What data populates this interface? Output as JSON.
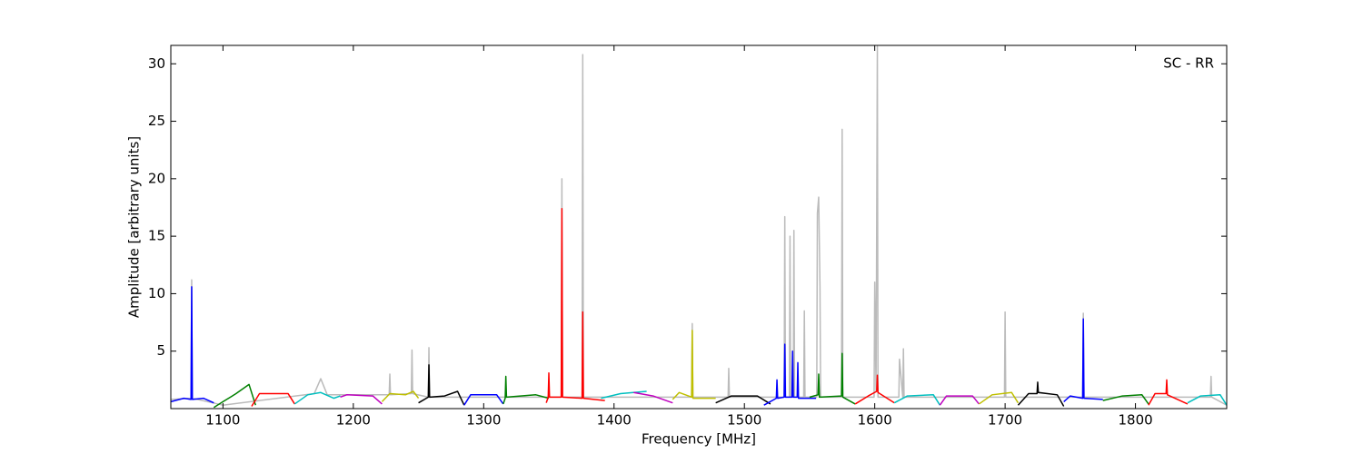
{
  "chart_data": {
    "type": "line",
    "xlabel": "Frequency [MHz]",
    "ylabel": "Amplitude [arbitrary units]",
    "annotation": "SC - RR",
    "xlim": [
      1060,
      1870
    ],
    "ylim": [
      0,
      31.6
    ],
    "xticks": [
      1100,
      1200,
      1300,
      1400,
      1500,
      1600,
      1700,
      1800
    ],
    "yticks": [
      5,
      10,
      15,
      20,
      25,
      30
    ],
    "grid": false,
    "series": [
      {
        "color": "#bbbbbb",
        "x": [
          1060,
          1075.5,
          1076,
          1076.5,
          1100,
          1170,
          1175,
          1180,
          1227.5,
          1228,
          1228.5,
          1244.5,
          1245,
          1245.5,
          1257.5,
          1258,
          1258.5,
          1359.5,
          1360,
          1360.5,
          1375.5,
          1376,
          1376.5,
          1459.5,
          1460,
          1460.5,
          1487.5,
          1488,
          1488.5,
          1530.5,
          1531,
          1531.5,
          1534.5,
          1535,
          1535.5,
          1537.5,
          1538,
          1538.5,
          1545.5,
          1546,
          1546.5,
          1555.5,
          1556,
          1557,
          1558,
          1558.5,
          1574.5,
          1575,
          1575.5,
          1599.5,
          1600,
          1601,
          1602,
          1602.5,
          1618.5,
          1619,
          1621.5,
          1622,
          1622.5,
          1699.5,
          1700,
          1700.5,
          1759.5,
          1760,
          1760.5,
          1857.5,
          1858,
          1858.5,
          1870
        ],
        "values": [
          0.8,
          0.9,
          11.2,
          0.9,
          0.3,
          1.3,
          2.6,
          1.2,
          1.2,
          3,
          1.2,
          1.3,
          5.1,
          1.3,
          1,
          5.3,
          1,
          1,
          20,
          1,
          1,
          30.8,
          1,
          1,
          7.4,
          1,
          1,
          3.5,
          1,
          1,
          16.7,
          1,
          1,
          15,
          1,
          1,
          15.5,
          1,
          1,
          8.5,
          1,
          1,
          17,
          18.4,
          10.6,
          1,
          1,
          24.3,
          1,
          1,
          11,
          1.5,
          31.5,
          1,
          1,
          4.3,
          1,
          5.2,
          1,
          1,
          8.4,
          1,
          1,
          8.3,
          1,
          1,
          2.8,
          1,
          0.3
        ]
      },
      {
        "color": "#0000ff",
        "x": [
          1060,
          1070,
          1075.5,
          1076,
          1076.5,
          1085,
          1093
        ],
        "values": [
          0.6,
          0.9,
          0.8,
          10.6,
          0.8,
          0.9,
          0.5
        ]
      },
      {
        "color": "#008000",
        "x": [
          1093,
          1100,
          1110,
          1120,
          1125
        ],
        "values": [
          0.1,
          0.6,
          1.3,
          2.1,
          0.3
        ]
      },
      {
        "color": "#ff0000",
        "x": [
          1122,
          1128,
          1150,
          1155
        ],
        "values": [
          0.2,
          1.3,
          1.3,
          0.4
        ]
      },
      {
        "color": "#00bfbf",
        "x": [
          1155,
          1165,
          1175,
          1185,
          1190
        ],
        "values": [
          0.4,
          1.2,
          1.4,
          0.9,
          1.1
        ]
      },
      {
        "color": "#bf00bf",
        "x": [
          1190,
          1195,
          1215,
          1222
        ],
        "values": [
          1.0,
          1.2,
          1.1,
          0.4
        ]
      },
      {
        "color": "#bfbf00",
        "x": [
          1222,
          1228,
          1240,
          1246,
          1250
        ],
        "values": [
          0.6,
          1.3,
          1.2,
          1.5,
          0.9
        ]
      },
      {
        "color": "#000000",
        "x": [
          1250,
          1257.5,
          1258,
          1258.5,
          1270,
          1280,
          1285
        ],
        "values": [
          0.5,
          1.0,
          3.8,
          1.0,
          1.1,
          1.5,
          0.3
        ]
      },
      {
        "color": "#0000ff",
        "x": [
          1285,
          1290,
          1310,
          1315
        ],
        "values": [
          0.3,
          1.2,
          1.2,
          0.4
        ]
      },
      {
        "color": "#008000",
        "x": [
          1315,
          1316.5,
          1317,
          1317.5,
          1340,
          1350
        ],
        "values": [
          0.4,
          0.9,
          2.8,
          1.0,
          1.2,
          0.9
        ]
      },
      {
        "color": "#ff0000",
        "x": [
          1348,
          1349.5,
          1350,
          1350.5,
          1359.5,
          1360,
          1360.5,
          1375.5,
          1376,
          1376.5,
          1393
        ],
        "values": [
          0.5,
          1.0,
          3.1,
          1.0,
          1.0,
          17.4,
          1.0,
          0.9,
          8.4,
          0.9,
          0.7
        ]
      },
      {
        "color": "#00bfbf",
        "x": [
          1390,
          1405,
          1425
        ],
        "values": [
          0.9,
          1.3,
          1.5
        ]
      },
      {
        "color": "#bf00bf",
        "x": [
          1415,
          1430,
          1445
        ],
        "values": [
          1.4,
          1.1,
          0.5
        ]
      },
      {
        "color": "#bfbf00",
        "x": [
          1445,
          1450,
          1459.5,
          1460,
          1460.5,
          1478
        ],
        "values": [
          0.8,
          1.4,
          1.0,
          6.8,
          0.9,
          0.9
        ]
      },
      {
        "color": "#000000",
        "x": [
          1478,
          1490,
          1510,
          1520
        ],
        "values": [
          0.5,
          1.1,
          1.1,
          0.4
        ]
      },
      {
        "color": "#0000ff",
        "x": [
          1515,
          1524.5,
          1525,
          1525.5,
          1530.5,
          1531,
          1531.5,
          1536.5,
          1537,
          1537.5,
          1540.5,
          1541,
          1541.5,
          1555
        ],
        "values": [
          0.3,
          0.9,
          2.5,
          0.9,
          1.0,
          5.6,
          1.0,
          1.0,
          5.0,
          1.0,
          1.0,
          4.0,
          0.9,
          0.9
        ]
      },
      {
        "color": "#008000",
        "x": [
          1550,
          1556.5,
          1557,
          1557.5,
          1574.5,
          1575,
          1575.5,
          1585
        ],
        "values": [
          1.0,
          1.2,
          3.0,
          1.0,
          1.1,
          4.8,
          1.0,
          0.4
        ]
      },
      {
        "color": "#ff0000",
        "x": [
          1585,
          1595,
          1601.5,
          1602,
          1602.5,
          1615
        ],
        "values": [
          0.4,
          1.1,
          1.5,
          2.9,
          1.4,
          0.5
        ]
      },
      {
        "color": "#00bfbf",
        "x": [
          1615,
          1625,
          1645,
          1650
        ],
        "values": [
          0.5,
          1.1,
          1.2,
          0.3
        ]
      },
      {
        "color": "#bf00bf",
        "x": [
          1650,
          1655,
          1675,
          1680
        ],
        "values": [
          0.3,
          1.1,
          1.1,
          0.4
        ]
      },
      {
        "color": "#bfbf00",
        "x": [
          1680,
          1690,
          1705,
          1710
        ],
        "values": [
          0.4,
          1.2,
          1.4,
          0.5
        ]
      },
      {
        "color": "#000000",
        "x": [
          1710,
          1718,
          1724.5,
          1725,
          1725.5,
          1740,
          1745
        ],
        "values": [
          0.3,
          1.3,
          1.3,
          2.3,
          1.4,
          1.2,
          0.2
        ]
      },
      {
        "color": "#0000ff",
        "x": [
          1745,
          1750,
          1759.5,
          1760,
          1760.5,
          1775
        ],
        "values": [
          0.6,
          1.1,
          0.9,
          7.8,
          0.9,
          0.8
        ]
      },
      {
        "color": "#008000",
        "x": [
          1775,
          1790,
          1805,
          1810
        ],
        "values": [
          0.7,
          1.1,
          1.2,
          0.4
        ]
      },
      {
        "color": "#ff0000",
        "x": [
          1810,
          1815,
          1823.5,
          1824,
          1824.5,
          1840
        ],
        "values": [
          0.3,
          1.3,
          1.3,
          2.5,
          1.2,
          0.4
        ]
      },
      {
        "color": "#00bfbf",
        "x": [
          1840,
          1850,
          1865,
          1870
        ],
        "values": [
          0.5,
          1.1,
          1.2,
          0.3
        ]
      }
    ]
  }
}
